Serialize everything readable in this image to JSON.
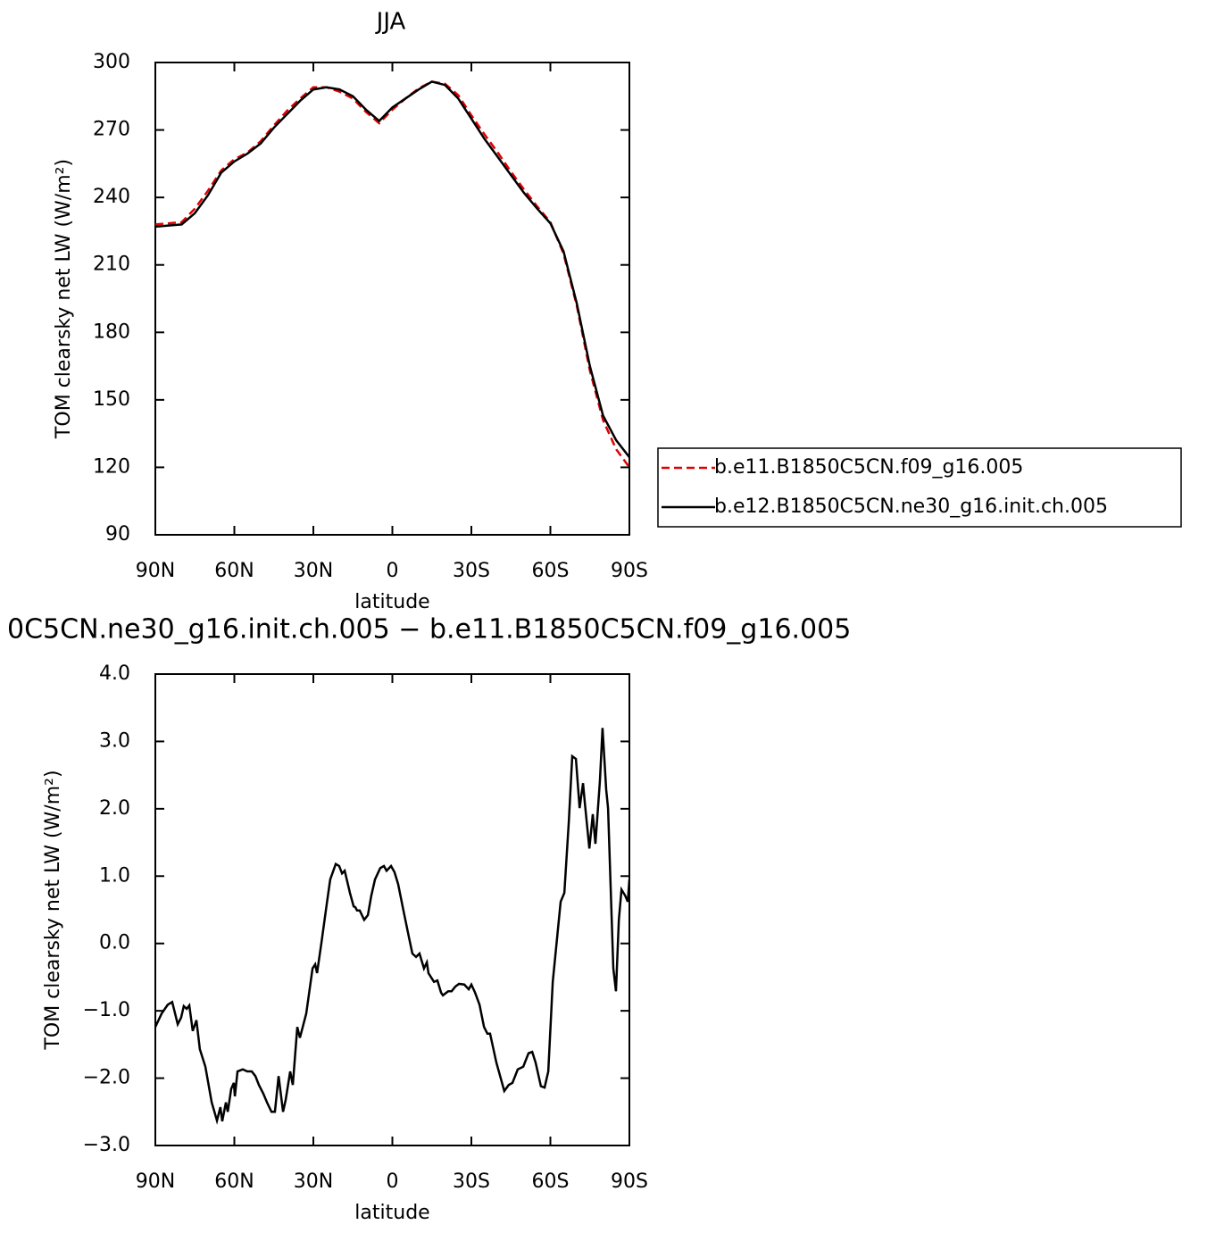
{
  "chart_data": [
    {
      "type": "line",
      "title": "JJA",
      "xlabel": "latitude",
      "ylabel": "TOM clearsky net LW (W/m²)",
      "x": [
        90,
        85,
        80,
        75,
        70,
        65,
        60,
        55,
        50,
        45,
        40,
        35,
        30,
        25,
        20,
        15,
        10,
        5,
        0,
        -5,
        -10,
        -15,
        -20,
        -25,
        -30,
        -35,
        -40,
        -45,
        -50,
        -55,
        -60,
        -65,
        -70,
        -75,
        -80,
        -85,
        -90
      ],
      "series": [
        {
          "name": "b.e11.B1850C5CN.f09_g16.005",
          "color": "#e00000",
          "dash": true,
          "values": [
            228,
            228.5,
            229,
            235,
            243,
            252,
            257,
            260,
            265,
            272,
            278.5,
            284,
            289,
            289,
            287,
            284,
            278,
            273,
            279,
            284,
            288.5,
            291.5,
            290.5,
            285.5,
            276.5,
            268,
            260,
            251.5,
            243.5,
            236,
            229,
            215,
            192,
            163,
            141,
            128,
            120
          ]
        },
        {
          "name": "b.e12.B1850C5CN.ne30_g16.init.ch.005",
          "color": "#000000",
          "dash": false,
          "values": [
            227,
            227.5,
            228,
            233,
            241,
            251,
            256,
            259.5,
            264,
            271,
            277,
            283,
            288,
            289,
            288,
            285,
            279,
            274,
            280,
            284,
            288,
            291.5,
            290,
            284,
            275,
            266,
            258,
            250,
            242,
            235,
            228.5,
            216,
            193,
            165,
            143,
            132,
            124.5
          ]
        }
      ],
      "xlim": [
        90,
        -90
      ],
      "xticks": [
        {
          "value": 90,
          "label": "90N"
        },
        {
          "value": 60,
          "label": "60N"
        },
        {
          "value": 30,
          "label": "30N"
        },
        0,
        {
          "value": -30,
          "label": "30S"
        },
        {
          "value": -60,
          "label": "60S"
        },
        {
          "value": -90,
          "label": "90S"
        }
      ],
      "ylim": [
        90,
        300
      ],
      "yticks": [
        90,
        120,
        150,
        180,
        210,
        240,
        270,
        300
      ],
      "legend": "outside-right"
    },
    {
      "type": "line",
      "title": "0C5CN.ne30_g16.init.ch.005 − b.e11.B1850C5CN.f09_g16.005",
      "xlabel": "latitude",
      "ylabel": "TOM clearsky net LW (W/m²)",
      "x": [
        90,
        87.6,
        85.3,
        83.6,
        82.5,
        81.5,
        80.2,
        79.2,
        78.1,
        77.1,
        75.8,
        74.4,
        73.1,
        71.0,
        68.6,
        66.6,
        65.3,
        64.6,
        63.2,
        62.5,
        61.2,
        60.2,
        59.8,
        58.8,
        56.8,
        55.1,
        53.4,
        52.0,
        50.7,
        49.0,
        47.6,
        45.9,
        44.6,
        43.2,
        41.5,
        40.5,
        38.8,
        37.8,
        36.1,
        35.1,
        32.7,
        30.3,
        29.3,
        28.6,
        26.9,
        24.9,
        23.6,
        21.5,
        20.2,
        19.1,
        18.1,
        16.1,
        14.7,
        14.1,
        13.4,
        12.4,
        10.7,
        9.3,
        8.0,
        6.6,
        4.6,
        3.2,
        2.2,
        0.5,
        -0.8,
        -2.2,
        -4.2,
        -6.3,
        -7.6,
        -9.0,
        -10.3,
        -12.0,
        -13.1,
        -13.7,
        -15.8,
        -17.1,
        -18.5,
        -19.2,
        -21.2,
        -22.5,
        -23.9,
        -25.3,
        -27.3,
        -29.0,
        -30.0,
        -31.4,
        -33.1,
        -34.8,
        -36.1,
        -37.1,
        -39.5,
        -42.5,
        -44.2,
        -45.6,
        -47.6,
        -49.7,
        -51.7,
        -53.1,
        -54.4,
        -56.4,
        -57.8,
        -59.2,
        -60.9,
        -63.9,
        -65.3,
        -67.0,
        -68.3,
        -69.7,
        -71.1,
        -72.4,
        -73.1,
        -74.8,
        -76.1,
        -77.1,
        -78.8,
        -79.8,
        -81.2,
        -81.9,
        -83.9,
        -84.9,
        -86.0,
        -87.0,
        -88.4,
        -89.4,
        -90
      ],
      "color": "#000000",
      "values": [
        -1.24,
        -1.04,
        -0.91,
        -0.87,
        -1.04,
        -1.2,
        -1.1,
        -0.93,
        -0.97,
        -0.92,
        -1.3,
        -1.14,
        -1.57,
        -1.83,
        -2.36,
        -2.63,
        -2.43,
        -2.64,
        -2.36,
        -2.5,
        -2.16,
        -2.07,
        -2.27,
        -1.9,
        -1.87,
        -1.9,
        -1.9,
        -1.97,
        -2.1,
        -2.23,
        -2.36,
        -2.5,
        -2.5,
        -1.97,
        -2.5,
        -2.32,
        -1.9,
        -2.1,
        -1.24,
        -1.4,
        -1.04,
        -0.37,
        -0.31,
        -0.44,
        0.02,
        0.59,
        0.95,
        1.18,
        1.15,
        1.04,
        1.08,
        0.75,
        0.55,
        0.54,
        0.49,
        0.49,
        0.35,
        0.42,
        0.71,
        0.95,
        1.12,
        1.15,
        1.08,
        1.15,
        1.06,
        0.88,
        0.49,
        0.09,
        -0.15,
        -0.2,
        -0.15,
        -0.37,
        -0.28,
        -0.44,
        -0.57,
        -0.55,
        -0.73,
        -0.77,
        -0.71,
        -0.71,
        -0.64,
        -0.6,
        -0.61,
        -0.68,
        -0.61,
        -0.73,
        -0.91,
        -1.24,
        -1.34,
        -1.34,
        -1.77,
        -2.19,
        -2.1,
        -2.07,
        -1.87,
        -1.83,
        -1.63,
        -1.61,
        -1.77,
        -2.12,
        -2.14,
        -1.9,
        -0.57,
        0.62,
        0.75,
        1.81,
        2.78,
        2.74,
        2.01,
        2.38,
        2.08,
        1.41,
        1.92,
        1.48,
        2.41,
        3.2,
        2.28,
        2.01,
        -0.37,
        -0.71,
        0.35,
        0.8,
        0.71,
        0.62,
        0.95
      ],
      "xlim": [
        90,
        -90
      ],
      "xticks": [
        {
          "value": 90,
          "label": "90N"
        },
        {
          "value": 60,
          "label": "60N"
        },
        {
          "value": 30,
          "label": "30N"
        },
        0,
        {
          "value": -30,
          "label": "30S"
        },
        {
          "value": -60,
          "label": "60S"
        },
        {
          "value": -90,
          "label": "90S"
        }
      ],
      "ylim": [
        -3,
        4
      ],
      "yticks": [
        {
          "value": -3,
          "label": "−3.0"
        },
        {
          "value": -2,
          "label": "−2.0"
        },
        {
          "value": -1,
          "label": "−1.0"
        },
        {
          "value": 0,
          "label": "0.0"
        },
        {
          "value": 1,
          "label": "1.0"
        },
        {
          "value": 2,
          "label": "2.0"
        },
        {
          "value": 3,
          "label": "3.0"
        },
        {
          "value": 4,
          "label": "4.0"
        }
      ]
    }
  ]
}
